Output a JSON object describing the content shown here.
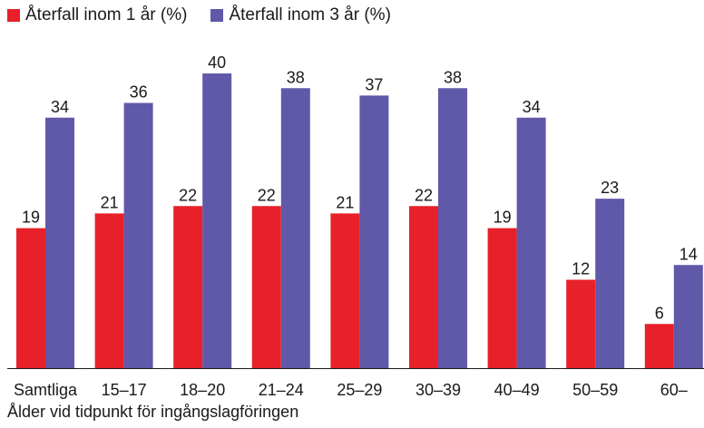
{
  "chart_data": {
    "type": "bar",
    "categories": [
      "Samtliga",
      "15–17",
      "18–20",
      "21–24",
      "25–29",
      "30–39",
      "40–49",
      "50–59",
      "60–"
    ],
    "series": [
      {
        "name": "Återfall inom 1 år (%)",
        "color": "#e8202a",
        "values": [
          19,
          21,
          22,
          22,
          21,
          22,
          19,
          12,
          6
        ]
      },
      {
        "name": "Återfall inom 3 år (%)",
        "color": "#6058a8",
        "values": [
          34,
          36,
          40,
          38,
          37,
          38,
          34,
          23,
          14
        ]
      }
    ],
    "xlabel": "Ålder vid tidpunkt för ingångslagföringen",
    "ylabel": "",
    "ylim": [
      0,
      40
    ],
    "grid": false,
    "legend": "top-left",
    "data_labels": true
  }
}
